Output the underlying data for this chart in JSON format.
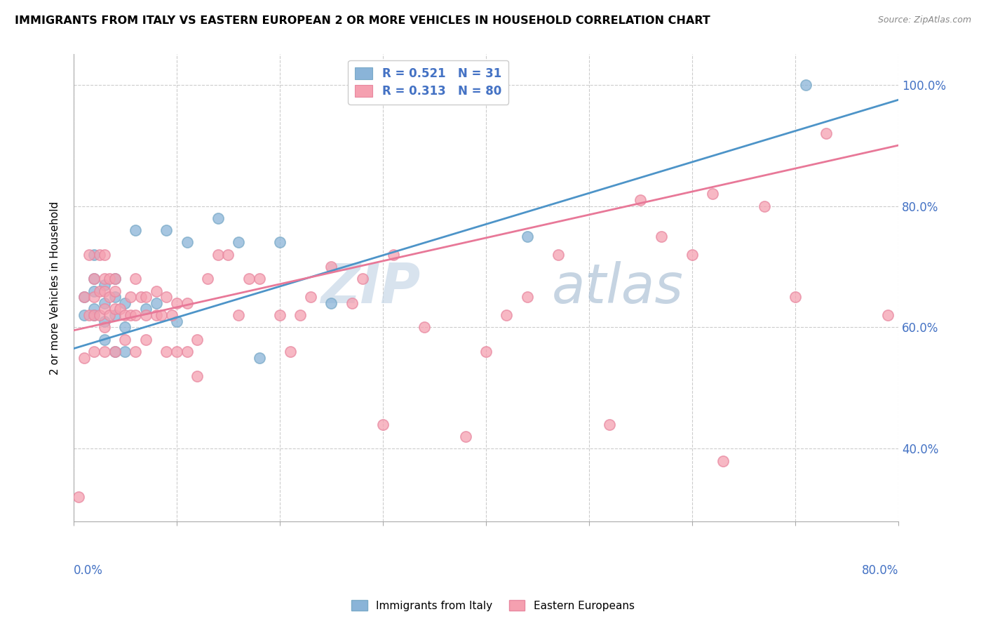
{
  "title": "IMMIGRANTS FROM ITALY VS EASTERN EUROPEAN 2 OR MORE VEHICLES IN HOUSEHOLD CORRELATION CHART",
  "source": "Source: ZipAtlas.com",
  "ylabel": "2 or more Vehicles in Household",
  "legend_italy": "R = 0.521   N = 31",
  "legend_eastern": "R = 0.313   N = 80",
  "legend_label_italy": "Immigrants from Italy",
  "legend_label_eastern": "Eastern Europeans",
  "italy_color": "#8ab4d8",
  "italy_edge_color": "#7aaac8",
  "italy_line_color": "#4d94c8",
  "eastern_color": "#f5a0b0",
  "eastern_edge_color": "#e888a0",
  "eastern_line_color": "#e87898",
  "watermark_zip": "ZIP",
  "watermark_atlas": "atlas",
  "xlim": [
    0.0,
    0.8
  ],
  "ylim": [
    0.28,
    1.05
  ],
  "italy_x": [
    0.01,
    0.01,
    0.02,
    0.02,
    0.02,
    0.02,
    0.02,
    0.03,
    0.03,
    0.03,
    0.03,
    0.04,
    0.04,
    0.04,
    0.04,
    0.05,
    0.05,
    0.05,
    0.06,
    0.07,
    0.08,
    0.09,
    0.1,
    0.11,
    0.14,
    0.16,
    0.18,
    0.2,
    0.25,
    0.44,
    0.71
  ],
  "italy_y": [
    0.62,
    0.65,
    0.62,
    0.63,
    0.66,
    0.68,
    0.72,
    0.58,
    0.61,
    0.64,
    0.67,
    0.56,
    0.62,
    0.65,
    0.68,
    0.56,
    0.6,
    0.64,
    0.76,
    0.63,
    0.64,
    0.76,
    0.61,
    0.74,
    0.78,
    0.74,
    0.55,
    0.74,
    0.64,
    0.75,
    1.0
  ],
  "eastern_x": [
    0.005,
    0.01,
    0.01,
    0.015,
    0.015,
    0.02,
    0.02,
    0.02,
    0.02,
    0.025,
    0.025,
    0.025,
    0.03,
    0.03,
    0.03,
    0.03,
    0.03,
    0.03,
    0.035,
    0.035,
    0.035,
    0.04,
    0.04,
    0.04,
    0.04,
    0.045,
    0.05,
    0.05,
    0.055,
    0.055,
    0.06,
    0.06,
    0.06,
    0.065,
    0.07,
    0.07,
    0.07,
    0.08,
    0.08,
    0.085,
    0.09,
    0.09,
    0.095,
    0.1,
    0.1,
    0.11,
    0.11,
    0.12,
    0.12,
    0.13,
    0.14,
    0.15,
    0.16,
    0.17,
    0.18,
    0.2,
    0.21,
    0.22,
    0.23,
    0.25,
    0.27,
    0.28,
    0.3,
    0.31,
    0.34,
    0.38,
    0.4,
    0.42,
    0.44,
    0.47,
    0.52,
    0.55,
    0.57,
    0.6,
    0.62,
    0.63,
    0.67,
    0.7,
    0.73,
    0.79
  ],
  "eastern_y": [
    0.32,
    0.55,
    0.65,
    0.62,
    0.72,
    0.56,
    0.62,
    0.65,
    0.68,
    0.62,
    0.66,
    0.72,
    0.56,
    0.6,
    0.63,
    0.66,
    0.68,
    0.72,
    0.62,
    0.65,
    0.68,
    0.56,
    0.63,
    0.66,
    0.68,
    0.63,
    0.58,
    0.62,
    0.62,
    0.65,
    0.56,
    0.62,
    0.68,
    0.65,
    0.58,
    0.62,
    0.65,
    0.62,
    0.66,
    0.62,
    0.56,
    0.65,
    0.62,
    0.56,
    0.64,
    0.56,
    0.64,
    0.52,
    0.58,
    0.68,
    0.72,
    0.72,
    0.62,
    0.68,
    0.68,
    0.62,
    0.56,
    0.62,
    0.65,
    0.7,
    0.64,
    0.68,
    0.44,
    0.72,
    0.6,
    0.42,
    0.56,
    0.62,
    0.65,
    0.72,
    0.44,
    0.81,
    0.75,
    0.72,
    0.82,
    0.38,
    0.8,
    0.65,
    0.92,
    0.62
  ],
  "italy_trendline": [
    0.565,
    0.975
  ],
  "eastern_trendline": [
    0.595,
    0.9
  ]
}
